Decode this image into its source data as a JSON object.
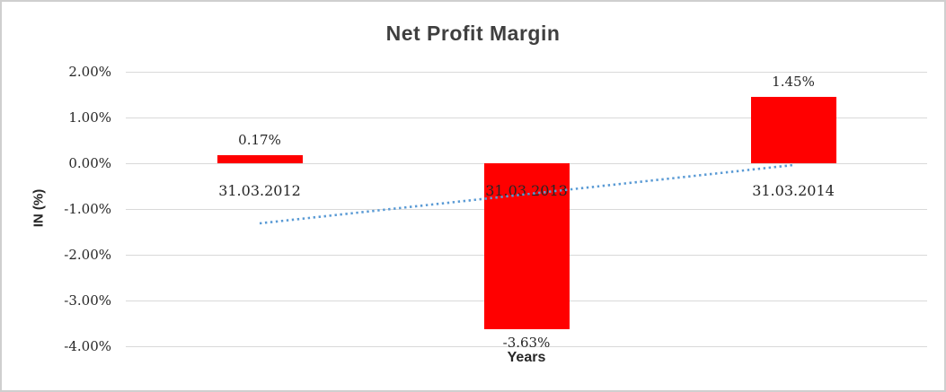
{
  "colors": {
    "bar": "#ff0000",
    "trendline": "#5b9bd5",
    "gridline": "#d9d9d9",
    "title_text": "#3f3f3f",
    "tick_text": "#262626",
    "border": "#cfcfcf",
    "background": "#ffffff"
  },
  "chart_data": {
    "type": "bar",
    "title": "Net Profit Margin",
    "xlabel": "Years",
    "ylabel": "IN (%)",
    "categories": [
      "31.03.2012",
      "31.03.2013",
      "31.03.2014"
    ],
    "values": [
      0.17,
      -3.63,
      1.45
    ],
    "data_labels": [
      "0.17%",
      "-3.63%",
      "1.45%"
    ],
    "y_ticks": [
      "2.00%",
      "1.00%",
      "0.00%",
      "-1.00%",
      "-2.00%",
      "-3.00%",
      "-4.00%"
    ],
    "y_tick_values": [
      2,
      1,
      0,
      -1,
      -2,
      -3,
      -4
    ],
    "ylim": [
      -4,
      2
    ],
    "grid": true,
    "legend": "none",
    "bar_color": "#ff0000",
    "trendline": {
      "type": "linear",
      "style": "dotted",
      "color": "#5b9bd5",
      "start_value": -1.31,
      "end_value": -0.03
    }
  }
}
